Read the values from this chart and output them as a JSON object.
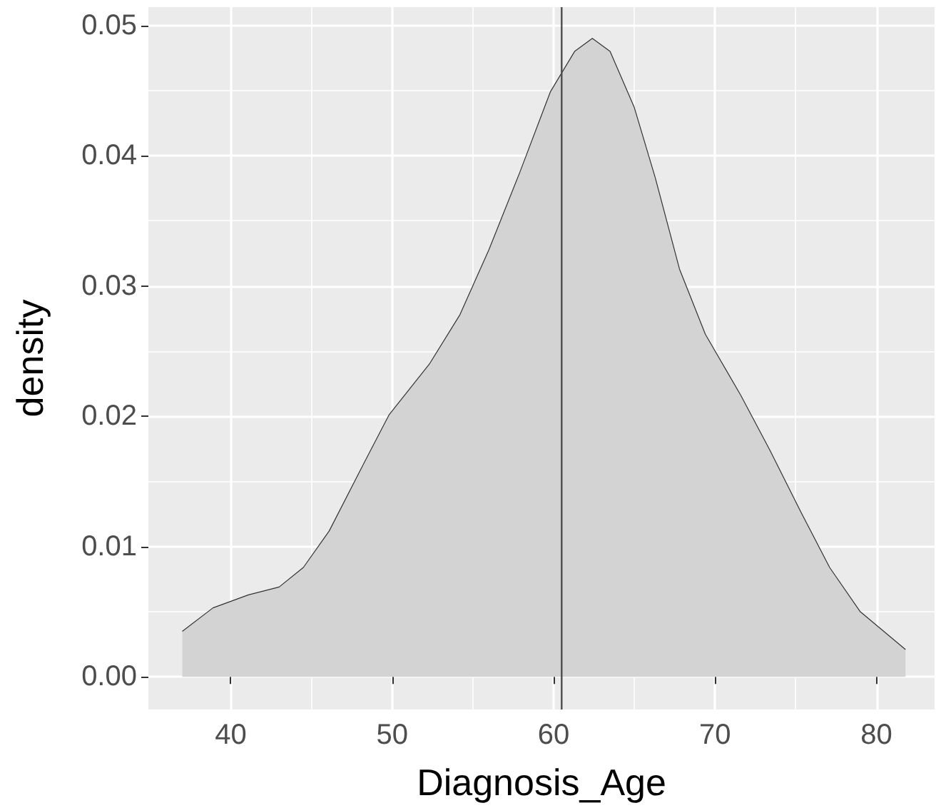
{
  "chart_data": {
    "type": "area",
    "xlabel": "Diagnosis_Age",
    "ylabel": "density",
    "x": [
      37.0,
      38.9,
      41.1,
      43.0,
      44.5,
      46.1,
      48.0,
      49.8,
      52.3,
      54.2,
      56.0,
      57.9,
      59.8,
      61.3,
      62.4,
      63.5,
      65.0,
      66.3,
      67.8,
      69.4,
      71.6,
      73.4,
      75.3,
      77.1,
      79.0,
      81.8
    ],
    "series": [
      {
        "color": "#d3d3d3",
        "values": [
          0.0035,
          0.0053,
          0.0063,
          0.0069,
          0.0084,
          0.0112,
          0.0158,
          0.0201,
          0.024,
          0.0278,
          0.0328,
          0.0387,
          0.0449,
          0.048,
          0.049,
          0.048,
          0.0437,
          0.0383,
          0.0313,
          0.0263,
          0.0216,
          0.0174,
          0.0127,
          0.0084,
          0.005,
          0.0021
        ]
      }
    ],
    "xlim": [
      34.9,
      83.6
    ],
    "xticks": [
      40,
      50,
      60,
      70,
      80
    ],
    "ylim": [
      -0.0025,
      0.0514
    ],
    "yticks": [
      {
        "value": 0,
        "label": "0.00"
      },
      {
        "value": 0.01,
        "label": "0.01"
      },
      {
        "value": 0.02,
        "label": "0.02"
      },
      {
        "value": 0.03,
        "label": "0.03"
      },
      {
        "value": 0.04,
        "label": "0.04"
      },
      {
        "value": 0.05,
        "label": "0.05"
      }
    ],
    "ref_lines": [
      {
        "axis": "x",
        "value": 60.5,
        "color": "#4d4d4d"
      }
    ],
    "grid": true
  }
}
